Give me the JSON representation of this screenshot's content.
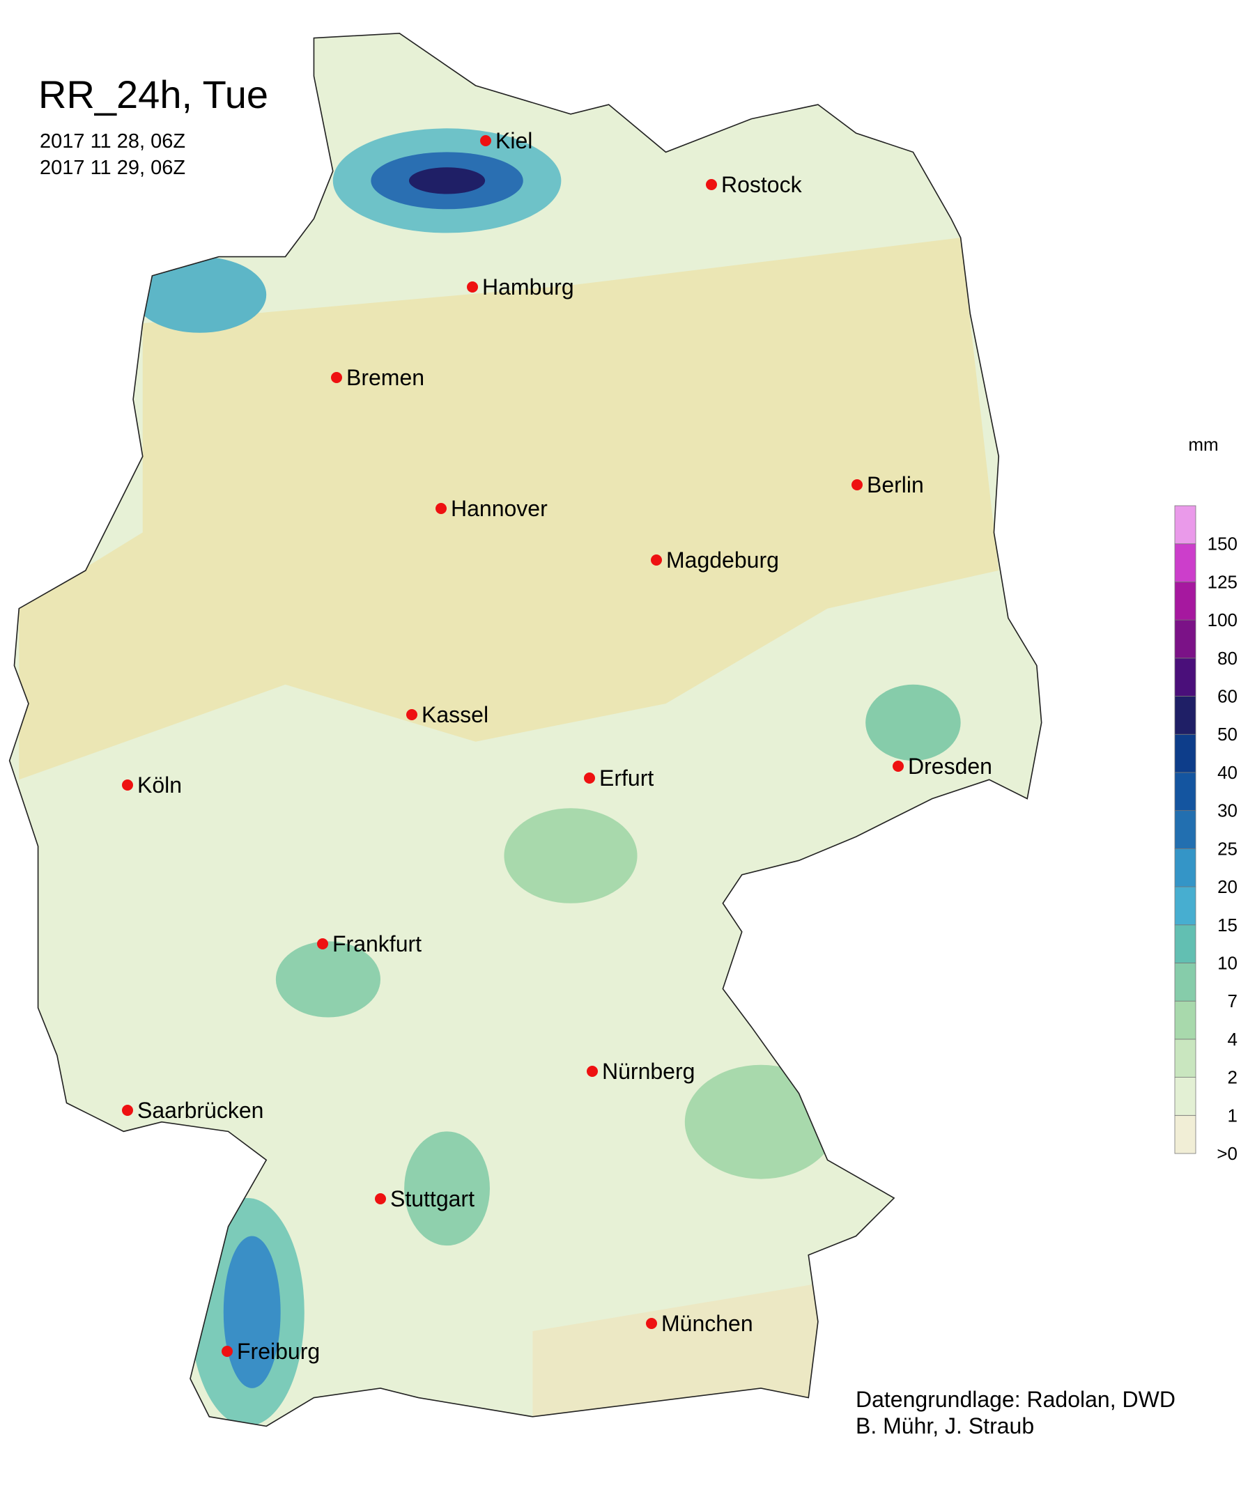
{
  "header": {
    "title": "RR_24h, Tue",
    "dates": [
      "2017 11 28, 06Z",
      "2017 11 29, 06Z"
    ]
  },
  "cities": [
    "Kiel",
    "Rostock",
    "Hamburg",
    "Bremen",
    "Berlin",
    "Hannover",
    "Magdeburg",
    "Kassel",
    "Köln",
    "Erfurt",
    "Dresden",
    "Frankfurt",
    "Nürnberg",
    "Saarbrücken",
    "Stuttgart",
    "München",
    "Freiburg"
  ],
  "legend": {
    "unit": "mm",
    "labels": [
      ">0",
      "1",
      "2",
      "4",
      "7",
      "10",
      "15",
      "20",
      "25",
      "30",
      "40",
      "50",
      "60",
      "80",
      "100",
      "125",
      "150"
    ],
    "colors": [
      "#f1eed6",
      "#e3f0d4",
      "#c9e6bf",
      "#a8d9ac",
      "#86ccaa",
      "#62bfb2",
      "#47aed0",
      "#3495c7",
      "#226fb0",
      "#1455a0",
      "#0d3d8a",
      "#1f1f66",
      "#4a0f7a",
      "#7b1287",
      "#a6189f",
      "#cc3ecb",
      "#ea9aea"
    ]
  },
  "credits": [
    "Datengrundlage: Radolan, DWD",
    "B. Mühr, J. Straub"
  ]
}
